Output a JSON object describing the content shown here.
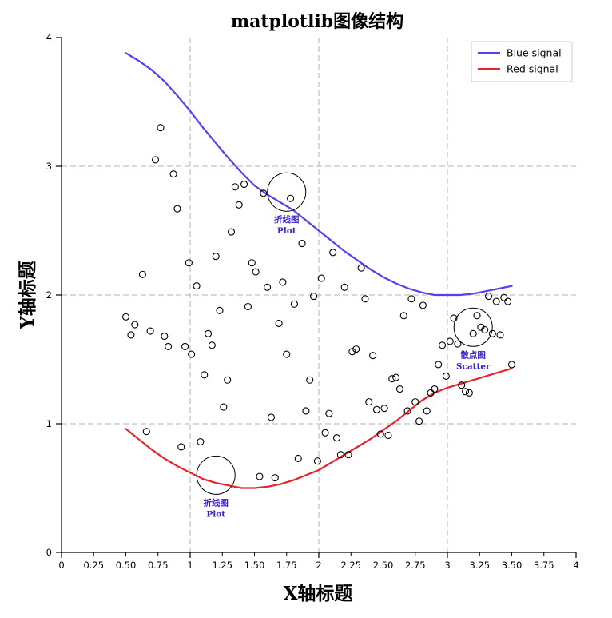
{
  "chart_data": {
    "type": "line",
    "title": "matplotlib图像结构",
    "xlabel": "X轴标题",
    "ylabel": "Y轴标题",
    "xlim": [
      0,
      4
    ],
    "ylim": [
      0,
      4
    ],
    "grid": true,
    "legend_position": "top-right",
    "x_major_ticks": [
      0,
      1,
      2,
      3,
      4
    ],
    "x_minor_tick_labels": [
      {
        "x": 0.25,
        "label": "0.25"
      },
      {
        "x": 0.5,
        "label": "0.50"
      },
      {
        "x": 0.75,
        "label": "0.75"
      },
      {
        "x": 1.25,
        "label": "1.25"
      },
      {
        "x": 1.5,
        "label": "1.50"
      },
      {
        "x": 1.75,
        "label": "1.75"
      },
      {
        "x": 2.25,
        "label": "2.25"
      },
      {
        "x": 2.5,
        "label": "2.50"
      },
      {
        "x": 2.75,
        "label": "2.75"
      },
      {
        "x": 3.25,
        "label": "3.25"
      },
      {
        "x": 3.5,
        "label": "3.50"
      },
      {
        "x": 3.75,
        "label": "3.75"
      }
    ],
    "y_major_ticks": [
      0,
      1,
      2,
      3,
      4
    ],
    "series": [
      {
        "name": "Blue signal",
        "kind": "line",
        "color": "#5b3cf0",
        "x": [
          0.5,
          0.6,
          0.7,
          0.8,
          0.9,
          1.0,
          1.1,
          1.2,
          1.3,
          1.4,
          1.5,
          1.6,
          1.7,
          1.8,
          1.9,
          2.0,
          2.1,
          2.2,
          2.3,
          2.4,
          2.5,
          2.6,
          2.7,
          2.8,
          2.9,
          3.0,
          3.1,
          3.2,
          3.3,
          3.4,
          3.5
        ],
        "y": [
          3.88,
          3.82,
          3.75,
          3.66,
          3.55,
          3.43,
          3.3,
          3.18,
          3.06,
          2.95,
          2.85,
          2.78,
          2.72,
          2.66,
          2.58,
          2.5,
          2.42,
          2.34,
          2.27,
          2.2,
          2.14,
          2.09,
          2.05,
          2.02,
          2.0,
          2.0,
          2.0,
          2.01,
          2.03,
          2.05,
          2.07
        ]
      },
      {
        "name": "Red signal",
        "kind": "line",
        "color": "#e8232b",
        "x": [
          0.5,
          0.6,
          0.7,
          0.8,
          0.9,
          1.0,
          1.1,
          1.2,
          1.3,
          1.4,
          1.5,
          1.6,
          1.7,
          1.8,
          1.9,
          2.0,
          2.1,
          2.2,
          2.3,
          2.4,
          2.5,
          2.6,
          2.7,
          2.8,
          2.9,
          3.0,
          3.1,
          3.2,
          3.3,
          3.4,
          3.5
        ],
        "y": [
          0.96,
          0.88,
          0.8,
          0.73,
          0.67,
          0.62,
          0.57,
          0.54,
          0.52,
          0.5,
          0.5,
          0.51,
          0.53,
          0.56,
          0.6,
          0.64,
          0.7,
          0.76,
          0.82,
          0.88,
          0.95,
          1.02,
          1.1,
          1.18,
          1.24,
          1.28,
          1.31,
          1.34,
          1.37,
          1.4,
          1.43
        ]
      },
      {
        "kind": "scatter",
        "marker": "open-circle",
        "color": "#000000",
        "x": [
          0.5,
          0.54,
          0.57,
          0.63,
          0.66,
          0.69,
          0.73,
          0.77,
          0.8,
          0.83,
          0.87,
          0.9,
          0.93,
          0.96,
          0.99,
          1.01,
          1.05,
          1.08,
          1.11,
          1.14,
          1.17,
          1.2,
          1.23,
          1.26,
          1.29,
          1.32,
          1.35,
          1.38,
          1.42,
          1.45,
          1.48,
          1.51,
          1.54,
          1.57,
          1.6,
          1.63,
          1.66,
          1.69,
          1.72,
          1.75,
          1.78,
          1.81,
          1.84,
          1.87,
          1.9,
          1.93,
          1.96,
          1.99,
          2.02,
          2.05,
          2.08,
          2.11,
          2.14,
          2.17,
          2.2,
          2.23,
          2.26,
          2.29,
          2.33,
          2.36,
          2.39,
          2.42,
          2.45,
          2.48,
          2.51,
          2.54,
          2.57,
          2.6,
          2.63,
          2.66,
          2.69,
          2.72,
          2.75,
          2.78,
          2.81,
          2.84,
          2.87,
          2.9,
          2.93,
          2.96,
          2.99,
          3.02,
          3.05,
          3.08,
          3.11,
          3.14,
          3.17,
          3.2,
          3.23,
          3.26,
          3.29,
          3.32,
          3.35,
          3.38,
          3.41,
          3.44,
          3.47,
          3.5
        ],
        "y": [
          1.83,
          1.69,
          1.77,
          2.16,
          0.94,
          1.72,
          3.05,
          3.3,
          1.68,
          1.6,
          2.94,
          2.67,
          0.82,
          1.6,
          2.25,
          1.54,
          2.07,
          0.86,
          1.38,
          1.7,
          1.61,
          2.3,
          1.88,
          1.13,
          1.34,
          2.49,
          2.84,
          2.7,
          2.86,
          1.91,
          2.25,
          2.18,
          0.59,
          2.79,
          2.06,
          1.05,
          0.58,
          1.78,
          2.1,
          1.54,
          2.75,
          1.93,
          0.73,
          2.4,
          1.1,
          1.34,
          1.99,
          0.71,
          2.13,
          0.93,
          1.08,
          2.33,
          0.89,
          0.76,
          2.06,
          0.76,
          1.56,
          1.58,
          2.21,
          1.97,
          1.17,
          1.53,
          1.11,
          0.92,
          1.12,
          0.91,
          1.35,
          1.36,
          1.27,
          1.84,
          1.1,
          1.97,
          1.17,
          1.02,
          1.92,
          1.1,
          1.24,
          1.27,
          1.46,
          1.61,
          1.37,
          1.64,
          1.82,
          1.62,
          1.3,
          1.25,
          1.24,
          1.7,
          1.84,
          1.75,
          1.73,
          1.99,
          1.7,
          1.95,
          1.69,
          1.98,
          1.95,
          1.46
        ]
      }
    ],
    "legend": [
      {
        "label": "Blue signal",
        "color": "#5b3cf0"
      },
      {
        "label": "Red signal",
        "color": "#e8232b"
      }
    ],
    "annotations": [
      {
        "x": 1.75,
        "y": 2.8,
        "label_zh": "折线图",
        "label_en": "Plot"
      },
      {
        "x": 1.2,
        "y": 0.6,
        "label_zh": "折线图",
        "label_en": "Plot"
      },
      {
        "x": 3.2,
        "y": 1.75,
        "label_zh": "散点图",
        "label_en": "Scatter"
      }
    ]
  }
}
